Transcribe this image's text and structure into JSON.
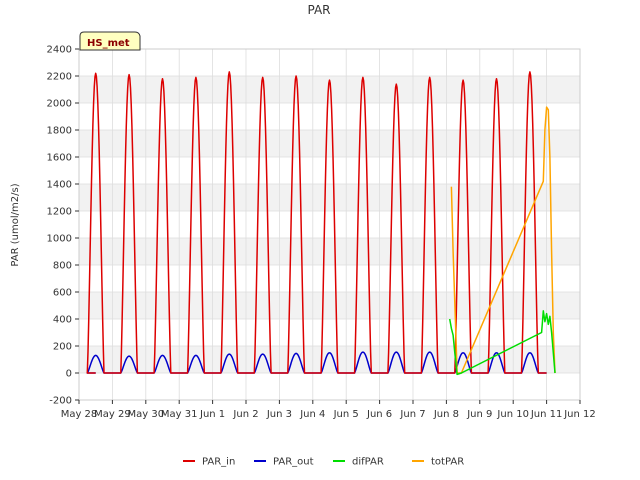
{
  "chart_data": {
    "type": "line",
    "title": "PAR",
    "xlabel": "",
    "ylabel": "PAR (umol/m2/s)",
    "ylim": [
      -200,
      2400
    ],
    "yticks": [
      -200,
      0,
      200,
      400,
      600,
      800,
      1000,
      1200,
      1400,
      1600,
      1800,
      2000,
      2200,
      2400
    ],
    "xlim": [
      0,
      15
    ],
    "x_unit": "days since May 28",
    "x_tick_labels": [
      "May 28",
      "May 29",
      "May 30",
      "May 31",
      "Jun 1",
      "Jun 2",
      "Jun 3",
      "Jun 4",
      "Jun 5",
      "Jun 6",
      "Jun 7",
      "Jun 8",
      "Jun 9",
      "Jun 10",
      "Jun 11",
      "Jun 12"
    ],
    "grid": true,
    "badge": "HS_met",
    "legend_position": "bottom",
    "series": [
      {
        "name": "PAR_in",
        "color": "#dd0000",
        "peaks": [
          2220,
          2210,
          2180,
          2190,
          2230,
          2190,
          2200,
          2170,
          2190,
          2140,
          2190,
          2170,
          2180,
          2230
        ],
        "sunrise": 0.25,
        "sunset": 0.75
      },
      {
        "name": "PAR_out",
        "color": "#0000cc",
        "peaks": [
          130,
          125,
          130,
          130,
          140,
          140,
          145,
          150,
          155,
          155,
          155,
          150,
          150,
          150
        ],
        "sunrise": 0.25,
        "sunset": 0.75
      },
      {
        "name": "difPAR",
        "color": "#00dd00",
        "x": [
          11.1,
          11.15,
          11.2,
          11.25,
          11.3,
          11.32,
          11.45,
          13.85,
          13.9,
          13.95,
          14.0,
          14.05,
          14.1,
          14.15,
          14.2,
          14.25
        ],
        "y": [
          400,
          330,
          280,
          150,
          40,
          -10,
          0,
          300,
          460,
          380,
          440,
          360,
          420,
          300,
          150,
          0
        ]
      },
      {
        "name": "totPAR",
        "color": "#ffa500",
        "x": [
          11.15,
          11.2,
          11.28,
          11.32,
          11.45,
          13.9,
          13.95,
          14.0,
          14.05,
          14.1,
          14.15,
          14.2,
          14.25
        ],
        "y": [
          1380,
          900,
          300,
          0,
          0,
          1420,
          1800,
          1970,
          1950,
          1600,
          900,
          300,
          0
        ]
      }
    ]
  }
}
